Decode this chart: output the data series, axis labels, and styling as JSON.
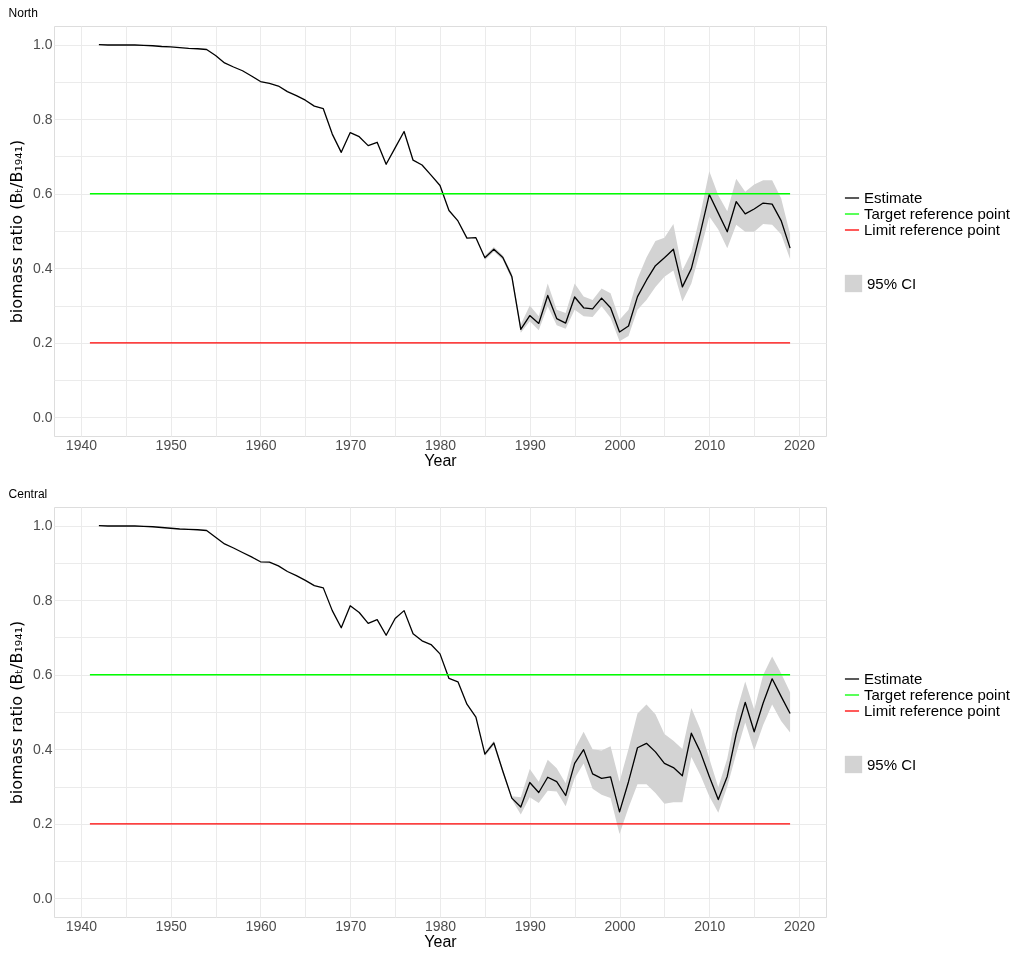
{
  "chart_data": [
    {
      "type": "line",
      "title": "North",
      "xlabel": "Year",
      "ylabel": "biomass ratio (Bₜ/B₁₉₄₁)",
      "xlim": [
        1937,
        2023
      ],
      "ylim": [
        -0.05,
        1.05
      ],
      "xticks": [
        1940,
        {
          "value": 1945,
          "label": null
        },
        1950,
        {
          "value": 1955,
          "label": null
        },
        1960,
        {
          "value": 1965,
          "label": null
        },
        1970,
        {
          "value": 1975,
          "label": null
        },
        1980,
        {
          "value": 1985,
          "label": null
        },
        1990,
        {
          "value": 1995,
          "label": null
        },
        2000,
        {
          "value": 2005,
          "label": null
        },
        2010,
        {
          "value": 2015,
          "label": null
        },
        2020
      ],
      "yticks": [
        {
          "value": 0,
          "label": "0.0"
        },
        {
          "value": 0.1,
          "label": null
        },
        {
          "value": 0.2,
          "label": "0.2"
        },
        {
          "value": 0.3,
          "label": null
        },
        {
          "value": 0.4,
          "label": "0.4"
        },
        {
          "value": 0.5,
          "label": null
        },
        {
          "value": 0.6,
          "label": "0.6"
        },
        {
          "value": 0.7,
          "label": null
        },
        {
          "value": 0.8,
          "label": "0.8"
        },
        {
          "value": 0.9,
          "label": null
        },
        {
          "value": 1,
          "label": "1.0"
        }
      ],
      "grid": true,
      "legend": "right",
      "series": [
        {
          "name": "Estimate",
          "color": "#000000",
          "x": [
            1942,
            1943,
            1944,
            1945,
            1946,
            1947,
            1948,
            1949,
            1950,
            1951,
            1952,
            1953,
            1954,
            1955,
            1956,
            1957,
            1958,
            1959,
            1960,
            1961,
            1962,
            1963,
            1964,
            1965,
            1966,
            1967,
            1968,
            1969,
            1970,
            1971,
            1972,
            1973,
            1974,
            1975,
            1976,
            1977,
            1978,
            1979,
            1980,
            1981,
            1982,
            1983,
            1984,
            1985,
            1986,
            1987,
            1988,
            1989,
            1990,
            1991,
            1992,
            1993,
            1994,
            1995,
            1996,
            1997,
            1998,
            1999,
            2000,
            2001,
            2002,
            2003,
            2004,
            2005,
            2006,
            2007,
            2008,
            2009,
            2010,
            2011,
            2012,
            2013,
            2014,
            2015,
            2016,
            2017,
            2018,
            2019
          ],
          "values": [
            1.0,
            0.999,
            0.999,
            0.999,
            0.999,
            0.998,
            0.997,
            0.995,
            0.994,
            0.992,
            0.99,
            0.989,
            0.987,
            0.971,
            0.951,
            0.94,
            0.93,
            0.916,
            0.901,
            0.896,
            0.889,
            0.874,
            0.863,
            0.851,
            0.835,
            0.828,
            0.76,
            0.711,
            0.764,
            0.753,
            0.729,
            0.738,
            0.679,
            0.723,
            0.767,
            0.69,
            0.677,
            0.65,
            0.622,
            0.555,
            0.527,
            0.481,
            0.482,
            0.428,
            0.451,
            0.429,
            0.378,
            0.236,
            0.273,
            0.252,
            0.327,
            0.265,
            0.253,
            0.323,
            0.294,
            0.291,
            0.32,
            0.294,
            0.229,
            0.245,
            0.324,
            0.368,
            0.407,
            0.428,
            0.451,
            0.35,
            0.399,
            0.495,
            0.598,
            0.548,
            0.498,
            0.579,
            0.546,
            0.559,
            0.575,
            0.572,
            0.528,
            0.454
          ]
        },
        {
          "name": "95% CI",
          "type": "area",
          "color": "#d3d3d3",
          "x": [
            1985,
            1986,
            1987,
            1988,
            1989,
            1990,
            1991,
            1992,
            1993,
            1994,
            1995,
            1996,
            1997,
            1998,
            1999,
            2000,
            2001,
            2002,
            2003,
            2004,
            2005,
            2006,
            2007,
            2008,
            2009,
            2010,
            2011,
            2012,
            2013,
            2014,
            2015,
            2016,
            2017,
            2018,
            2019
          ],
          "values": [
            null,
            null,
            null,
            null,
            null,
            null,
            null,
            null,
            null,
            null,
            null,
            null,
            null,
            null,
            null,
            null,
            null,
            null,
            null,
            null,
            null,
            null,
            null,
            null,
            null,
            null,
            null,
            null,
            null,
            null,
            null,
            null,
            null,
            null,
            null
          ],
          "lower": [
            0.422,
            0.445,
            0.423,
            0.37,
            0.227,
            0.258,
            0.234,
            0.298,
            0.247,
            0.238,
            0.289,
            0.271,
            0.269,
            0.298,
            0.267,
            0.204,
            0.218,
            0.289,
            0.315,
            0.35,
            0.377,
            0.394,
            0.311,
            0.359,
            0.447,
            0.539,
            0.504,
            0.454,
            0.517,
            0.498,
            0.498,
            0.519,
            0.517,
            0.491,
            0.425
          ],
          "upper": [
            0.434,
            0.457,
            0.435,
            0.386,
            0.249,
            0.3,
            0.271,
            0.359,
            0.289,
            0.28,
            0.359,
            0.324,
            0.315,
            0.346,
            0.333,
            0.262,
            0.289,
            0.372,
            0.429,
            0.473,
            0.482,
            0.519,
            0.394,
            0.443,
            0.544,
            0.66,
            0.596,
            0.553,
            0.64,
            0.605,
            0.625,
            0.636,
            0.636,
            0.588,
            0.491
          ]
        },
        {
          "name": "Target reference point",
          "color": "#00ff00",
          "x": [
            1941,
            2019
          ],
          "values": [
            0.6,
            0.6
          ]
        },
        {
          "name": "Limit reference point",
          "color": "#ff0000",
          "x": [
            1941,
            2019
          ],
          "values": [
            0.2,
            0.2
          ]
        }
      ]
    },
    {
      "type": "line",
      "title": "Central",
      "xlabel": "Year",
      "ylabel": "biomass ratio (Bₜ/B₁₉₄₁)",
      "xlim": [
        1937,
        2023
      ],
      "ylim": [
        -0.05,
        1.05
      ],
      "xticks": [
        1940,
        {
          "value": 1945,
          "label": null
        },
        1950,
        {
          "value": 1955,
          "label": null
        },
        1960,
        {
          "value": 1965,
          "label": null
        },
        1970,
        {
          "value": 1975,
          "label": null
        },
        1980,
        {
          "value": 1985,
          "label": null
        },
        1990,
        {
          "value": 1995,
          "label": null
        },
        2000,
        {
          "value": 2005,
          "label": null
        },
        2010,
        {
          "value": 2015,
          "label": null
        },
        2020
      ],
      "yticks": [
        {
          "value": 0,
          "label": "0.0"
        },
        {
          "value": 0.1,
          "label": null
        },
        {
          "value": 0.2,
          "label": "0.2"
        },
        {
          "value": 0.3,
          "label": null
        },
        {
          "value": 0.4,
          "label": "0.4"
        },
        {
          "value": 0.5,
          "label": null
        },
        {
          "value": 0.6,
          "label": "0.6"
        },
        {
          "value": 0.7,
          "label": null
        },
        {
          "value": 0.8,
          "label": "0.8"
        },
        {
          "value": 0.9,
          "label": null
        },
        {
          "value": 1,
          "label": "1.0"
        }
      ],
      "grid": true,
      "legend": "right",
      "series": [
        {
          "name": "Estimate",
          "color": "#000000",
          "x": [
            1942,
            1943,
            1944,
            1945,
            1946,
            1947,
            1948,
            1949,
            1950,
            1951,
            1952,
            1953,
            1954,
            1955,
            1956,
            1957,
            1958,
            1959,
            1960,
            1961,
            1962,
            1963,
            1964,
            1965,
            1966,
            1967,
            1968,
            1969,
            1970,
            1971,
            1972,
            1973,
            1974,
            1975,
            1976,
            1977,
            1978,
            1979,
            1980,
            1981,
            1982,
            1983,
            1984,
            1985,
            1986,
            1987,
            1988,
            1989,
            1990,
            1991,
            1992,
            1993,
            1994,
            1995,
            1996,
            1997,
            1998,
            1999,
            2000,
            2001,
            2002,
            2003,
            2004,
            2005,
            2006,
            2007,
            2008,
            2009,
            2010,
            2011,
            2012,
            2013,
            2014,
            2015,
            2016,
            2017,
            2018,
            2019
          ],
          "values": [
            1.0,
            0.999,
            0.999,
            0.999,
            0.999,
            0.998,
            0.997,
            0.995,
            0.993,
            0.991,
            0.99,
            0.989,
            0.987,
            0.969,
            0.951,
            0.94,
            0.928,
            0.916,
            0.903,
            0.902,
            0.892,
            0.877,
            0.866,
            0.853,
            0.839,
            0.833,
            0.772,
            0.726,
            0.785,
            0.767,
            0.738,
            0.748,
            0.706,
            0.751,
            0.772,
            0.71,
            0.691,
            0.681,
            0.656,
            0.59,
            0.581,
            0.521,
            0.486,
            0.387,
            0.417,
            0.341,
            0.269,
            0.245,
            0.311,
            0.284,
            0.325,
            0.313,
            0.276,
            0.362,
            0.399,
            0.334,
            0.322,
            0.326,
            0.232,
            0.313,
            0.404,
            0.416,
            0.393,
            0.362,
            0.351,
            0.329,
            0.443,
            0.393,
            0.327,
            0.265,
            0.327,
            0.441,
            0.526,
            0.447,
            0.524,
            0.589,
            0.542,
            0.496
          ]
        },
        {
          "name": "95% CI",
          "type": "area",
          "color": "#d3d3d3",
          "x": [
            1985,
            1986,
            1987,
            1988,
            1989,
            1990,
            1991,
            1992,
            1993,
            1994,
            1995,
            1996,
            1997,
            1998,
            1999,
            2000,
            2001,
            2002,
            2003,
            2004,
            2005,
            2006,
            2007,
            2008,
            2009,
            2010,
            2011,
            2012,
            2013,
            2014,
            2015,
            2016,
            2017,
            2018,
            2019
          ],
          "values": [
            null,
            null,
            null,
            null,
            null,
            null,
            null,
            null,
            null,
            null,
            null,
            null,
            null,
            null,
            null,
            null,
            null,
            null,
            null,
            null,
            null,
            null,
            null,
            null,
            null,
            null,
            null,
            null,
            null,
            null,
            null,
            null,
            null,
            null,
            null
          ],
          "lower": [
            0.381,
            0.411,
            0.335,
            0.265,
            0.225,
            0.271,
            0.256,
            0.289,
            0.287,
            0.247,
            0.322,
            0.362,
            0.294,
            0.278,
            0.269,
            0.173,
            0.243,
            0.306,
            0.306,
            0.283,
            0.254,
            0.258,
            0.258,
            0.379,
            0.331,
            0.274,
            0.23,
            0.3,
            0.388,
            0.472,
            0.397,
            0.465,
            0.52,
            0.476,
            0.445
          ],
          "upper": [
            0.393,
            0.423,
            0.347,
            0.274,
            0.271,
            0.347,
            0.313,
            0.372,
            0.349,
            0.309,
            0.401,
            0.447,
            0.4,
            0.397,
            0.408,
            0.313,
            0.401,
            0.496,
            0.52,
            0.494,
            0.441,
            0.423,
            0.401,
            0.511,
            0.454,
            0.375,
            0.298,
            0.375,
            0.498,
            0.582,
            0.507,
            0.599,
            0.649,
            0.604,
            0.553
          ]
        },
        {
          "name": "Target reference point",
          "color": "#00ff00",
          "x": [
            1941,
            2019
          ],
          "values": [
            0.6,
            0.6
          ]
        },
        {
          "name": "Limit reference point",
          "color": "#ff0000",
          "x": [
            1941,
            2019
          ],
          "values": [
            0.2,
            0.2
          ]
        }
      ]
    }
  ]
}
